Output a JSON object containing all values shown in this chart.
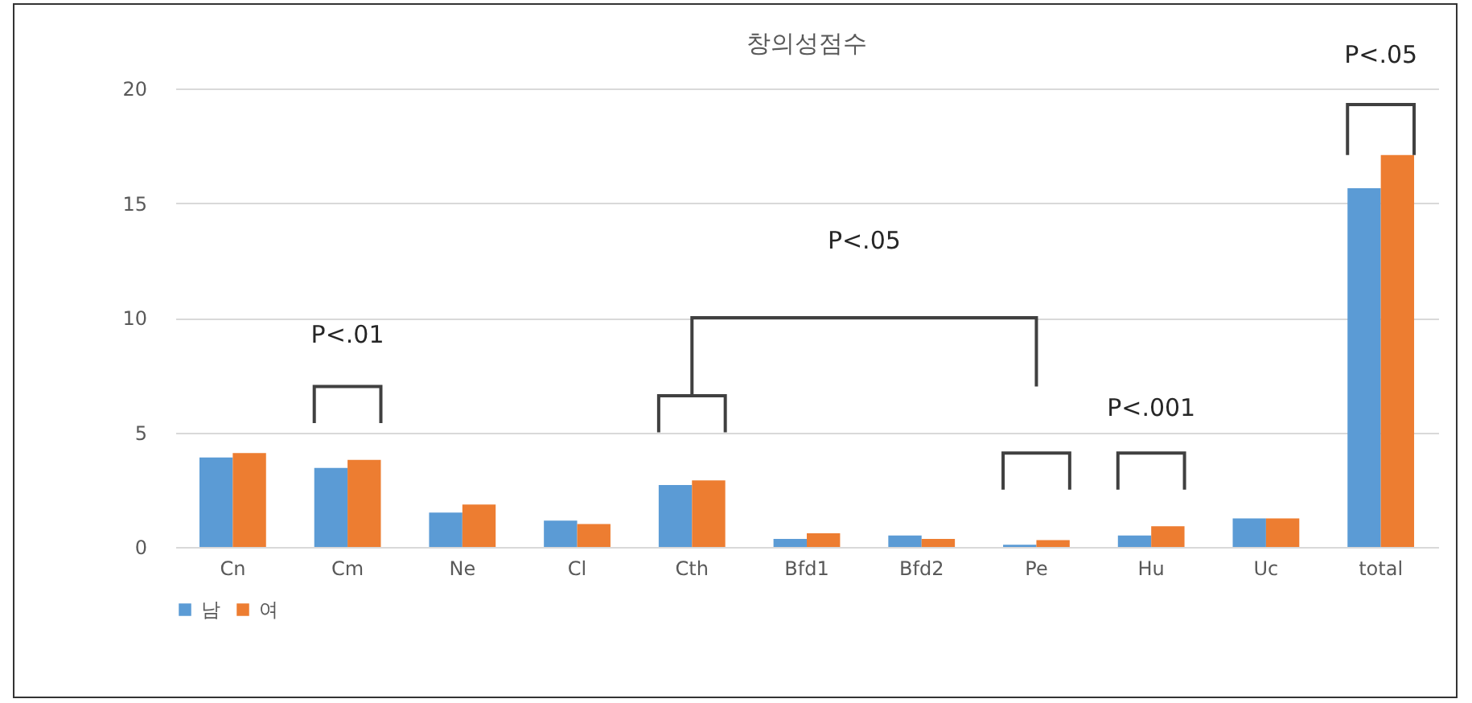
{
  "chart_data": {
    "type": "bar",
    "title": "창의성점수",
    "categories": [
      "Cn",
      "Cm",
      "Ne",
      "Cl",
      "Cth",
      "Bfd1",
      "Bfd2",
      "Pe",
      "Hu",
      "Uc",
      "total"
    ],
    "series": [
      {
        "name": "남",
        "color": "#5b9bd5",
        "values": [
          3.9,
          3.45,
          1.5,
          1.15,
          2.7,
          0.35,
          0.5,
          0.1,
          0.5,
          1.25,
          15.65
        ]
      },
      {
        "name": "여",
        "color": "#ed7d31",
        "values": [
          4.1,
          3.8,
          1.85,
          1.0,
          2.9,
          0.6,
          0.35,
          0.3,
          0.9,
          1.25,
          17.1
        ]
      }
    ],
    "ylim": [
      0,
      20
    ],
    "yticks": [
      0,
      5,
      10,
      15,
      20
    ],
    "grid": "y",
    "legend": "bottom",
    "annotations": [
      "P<.01",
      "P<.05",
      "P<.001",
      "P<.05"
    ]
  }
}
